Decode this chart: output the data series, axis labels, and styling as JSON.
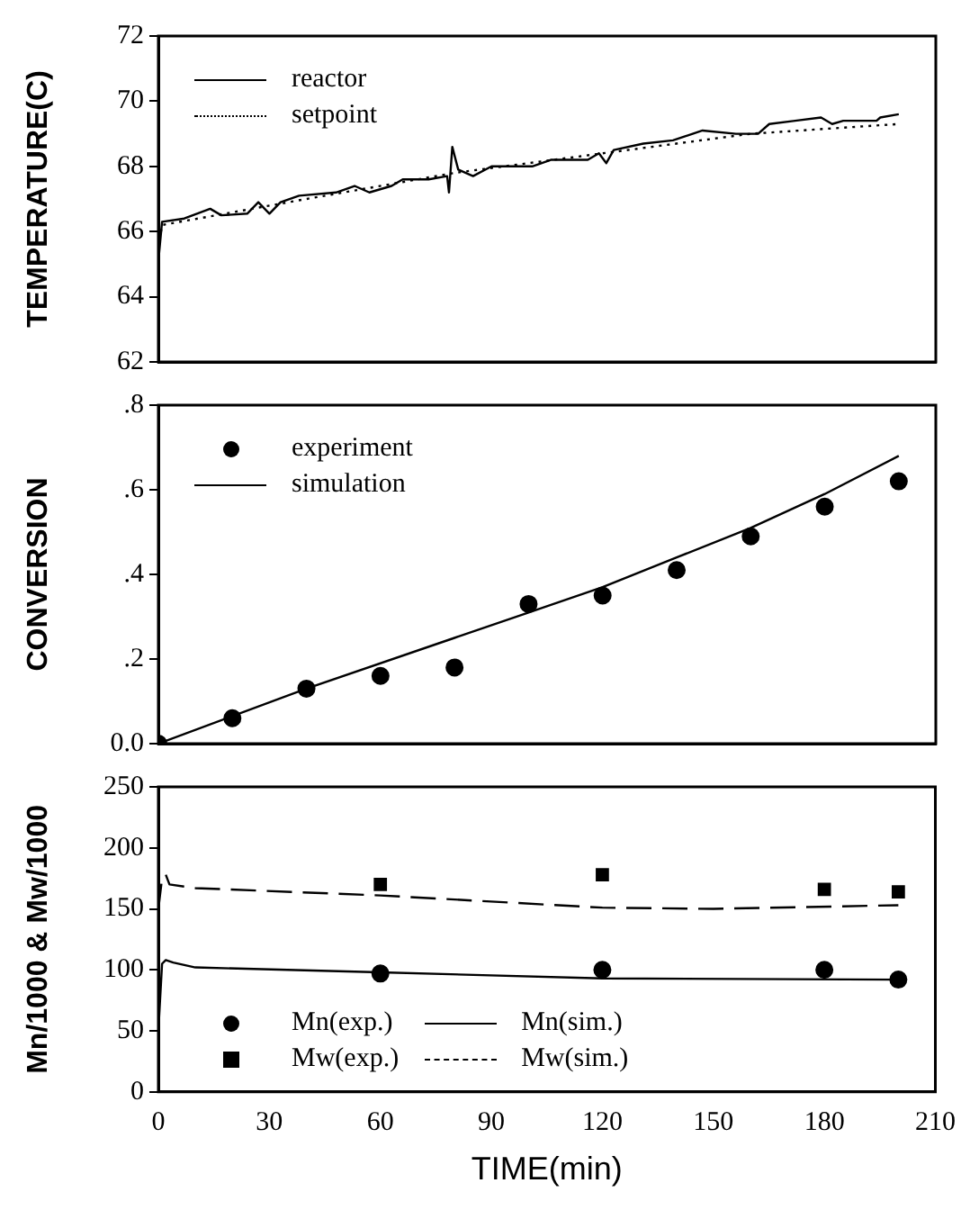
{
  "chart_data": [
    {
      "type": "line",
      "ylabel": "TEMPERATURE(C)",
      "xlim": [
        0,
        210
      ],
      "xticks": [
        0,
        30,
        60,
        90,
        120,
        150,
        180,
        210
      ],
      "ylim": [
        62,
        72
      ],
      "yticks": [
        62,
        64,
        66,
        68,
        70,
        72
      ],
      "tick_labels": "y",
      "grid": false,
      "legend": "top left",
      "series": [
        {
          "name": "reactor",
          "color": "#000000",
          "line_style": "solid",
          "x": [
            0,
            1,
            7,
            14,
            17,
            24,
            27,
            30,
            33,
            38,
            48,
            53,
            57,
            63,
            66,
            73,
            78,
            78.5,
            79.4,
            81,
            85,
            90,
            101,
            106,
            116,
            119,
            121,
            123,
            131,
            139,
            147,
            156,
            162,
            165,
            172,
            179,
            182,
            185,
            194,
            195,
            200
          ],
          "values": [
            65.1,
            66.3,
            66.4,
            66.7,
            66.5,
            66.55,
            66.9,
            66.55,
            66.9,
            67.1,
            67.2,
            67.4,
            67.2,
            67.4,
            67.6,
            67.6,
            67.7,
            67.2,
            68.6,
            67.9,
            67.7,
            68.0,
            68.0,
            68.2,
            68.2,
            68.4,
            68.1,
            68.5,
            68.7,
            68.8,
            69.1,
            69.0,
            69.0,
            69.3,
            69.4,
            69.5,
            69.3,
            69.4,
            69.4,
            69.5,
            69.6
          ]
        },
        {
          "name": "setpoint",
          "color": "#000000",
          "line_style": "dotted",
          "x": [
            0,
            1,
            40,
            80,
            120,
            160,
            200
          ],
          "values": [
            65.5,
            66.2,
            67.0,
            67.8,
            68.4,
            69.0,
            69.3
          ]
        }
      ]
    },
    {
      "type": "line",
      "ylabel": "CONVERSION",
      "xlim": [
        0,
        210
      ],
      "xticks": [
        0,
        30,
        60,
        90,
        120,
        150,
        180,
        210
      ],
      "ylim": [
        0,
        0.8
      ],
      "yticks": [
        {
          "value": 0,
          "label": "0.0"
        },
        {
          "value": 0.2,
          "label": ".2"
        },
        {
          "value": 0.4,
          "label": ".4"
        },
        {
          "value": 0.6,
          "label": ".6"
        },
        {
          "value": 0.8,
          "label": ".8"
        }
      ],
      "tick_labels": "y",
      "grid": false,
      "legend": "top left",
      "series": [
        {
          "name": "experiment",
          "type": "scatter",
          "marker": "circle",
          "color": "#000000",
          "x": [
            0,
            20,
            40,
            60,
            80,
            100,
            120,
            140,
            160,
            180,
            200
          ],
          "values": [
            0,
            0.06,
            0.13,
            0.16,
            0.18,
            0.33,
            0.35,
            0.41,
            0.49,
            0.56,
            0.62
          ]
        },
        {
          "name": "simulation",
          "type": "line",
          "color": "#000000",
          "line_style": "solid",
          "x": [
            0,
            40,
            80,
            100,
            120,
            140,
            160,
            180,
            200
          ],
          "values": [
            0,
            0.13,
            0.25,
            0.31,
            0.37,
            0.44,
            0.51,
            0.59,
            0.68
          ]
        }
      ]
    },
    {
      "type": "line",
      "xlabel": "TIME(min)",
      "ylabel": "Mn/1000 & Mw/1000",
      "xlim": [
        0,
        210
      ],
      "xticks": [
        0,
        30,
        60,
        90,
        120,
        150,
        180,
        210
      ],
      "ylim": [
        0,
        250
      ],
      "yticks": [
        0,
        50,
        100,
        150,
        200,
        250
      ],
      "grid": false,
      "legend": "bottom left",
      "series": [
        {
          "name": "Mn(exp.)",
          "type": "scatter",
          "marker": "circle",
          "color": "#000000",
          "x": [
            60,
            120,
            180,
            200
          ],
          "values": [
            97,
            100,
            100,
            92
          ]
        },
        {
          "name": "Mw(exp.)",
          "type": "scatter",
          "marker": "square",
          "color": "#000000",
          "x": [
            60,
            120,
            180,
            200
          ],
          "values": [
            170,
            178,
            166,
            164
          ]
        },
        {
          "name": "Mn(sim.)",
          "type": "line",
          "color": "#000000",
          "line_style": "solid",
          "x": [
            0,
            1,
            2,
            4,
            10,
            60,
            120,
            200
          ],
          "values": [
            50,
            105,
            108,
            106,
            102,
            98,
            93,
            92
          ]
        },
        {
          "name": "Mw(sim.)",
          "type": "line",
          "color": "#000000",
          "line_style": "dashed",
          "x": [
            0,
            1,
            2,
            3,
            10,
            60,
            120,
            150,
            200
          ],
          "values": [
            150,
            175,
            178,
            170,
            167,
            161,
            151,
            150,
            153
          ]
        }
      ]
    }
  ]
}
